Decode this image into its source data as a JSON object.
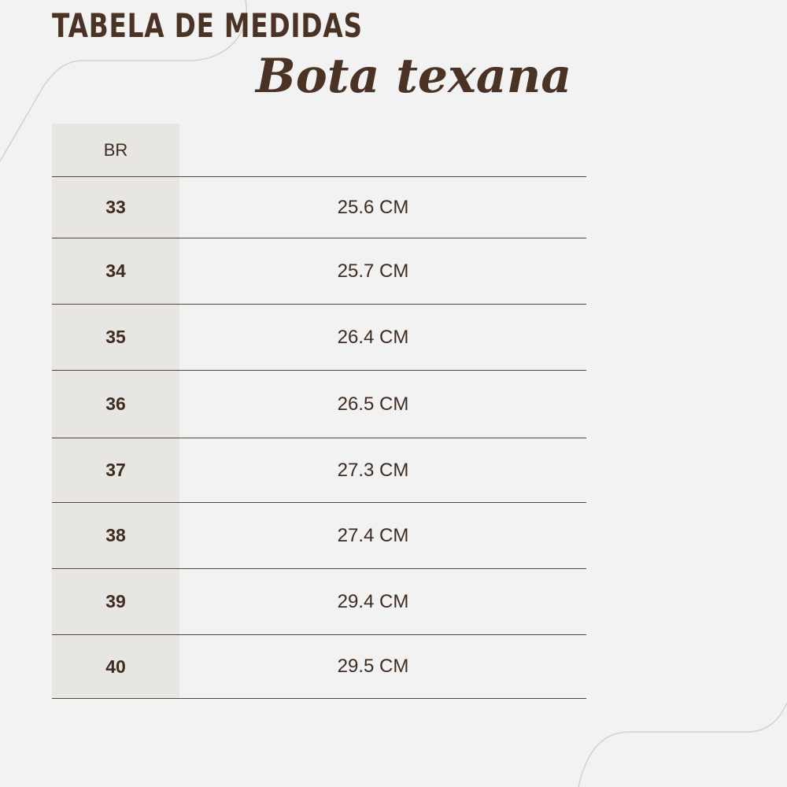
{
  "title": "Tabela de medidas",
  "subtitle": "Bota texana",
  "table": {
    "header": {
      "size": "BR",
      "value": ""
    },
    "rows": [
      {
        "size": "33",
        "value": "25.6 CM"
      },
      {
        "size": "34",
        "value": "25.7 CM"
      },
      {
        "size": "35",
        "value": "26.4 CM"
      },
      {
        "size": "36",
        "value": "26.5 CM"
      },
      {
        "size": "37",
        "value": "27.3 CM"
      },
      {
        "size": "38",
        "value": "27.4 CM"
      },
      {
        "size": "39",
        "value": "29.4 CM"
      },
      {
        "size": "40",
        "value": "29.5 CM"
      }
    ]
  },
  "colors": {
    "text": "#4a3324",
    "background": "#f2f2f2",
    "column": "#e7e6e2",
    "line": "#5a4638"
  }
}
